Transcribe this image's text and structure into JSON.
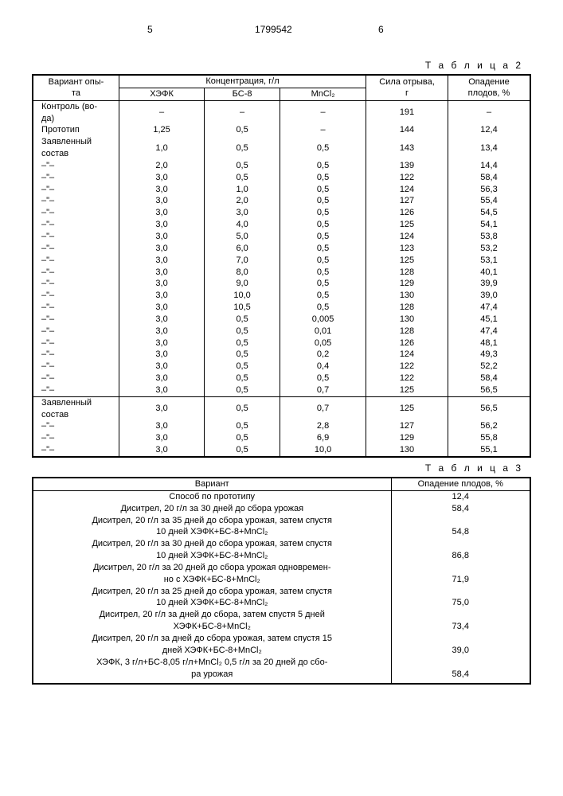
{
  "page_header": {
    "left_col": "5",
    "doc_number": "1799542",
    "right_col": "6"
  },
  "table2": {
    "label": "Т а б л и ц а 2",
    "headers": {
      "variant": "Вариант опы-\nта",
      "concentration_group": "Концентрация, г/л",
      "sub": {
        "c1": "ХЭФК",
        "c2": "БС-8",
        "c3": "MnCl₂"
      },
      "force": "Сила отрыва,\nг",
      "fall": "Опадение\nплодов, %"
    },
    "rows": [
      {
        "v": "Контроль (во-\nда)",
        "c1": "–",
        "c2": "–",
        "c3": "–",
        "f": "191",
        "p": "–"
      },
      {
        "v": "Прототип",
        "c1": "1,25",
        "c2": "0,5",
        "c3": "–",
        "f": "144",
        "p": "12,4"
      },
      {
        "v": "Заявленный\nсостав",
        "c1": "1,0",
        "c2": "0,5",
        "c3": "0,5",
        "f": "143",
        "p": "13,4"
      },
      {
        "v": "–\"–",
        "c1": "2,0",
        "c2": "0,5",
        "c3": "0,5",
        "f": "139",
        "p": "14,4"
      },
      {
        "v": "–\"–",
        "c1": "3,0",
        "c2": "0,5",
        "c3": "0,5",
        "f": "122",
        "p": "58,4"
      },
      {
        "v": "–\"–",
        "c1": "3,0",
        "c2": "1,0",
        "c3": "0,5",
        "f": "124",
        "p": "56,3"
      },
      {
        "v": "–\"–",
        "c1": "3,0",
        "c2": "2,0",
        "c3": "0,5",
        "f": "127",
        "p": "55,4"
      },
      {
        "v": "–\"–",
        "c1": "3,0",
        "c2": "3,0",
        "c3": "0,5",
        "f": "126",
        "p": "54,5"
      },
      {
        "v": "–\"–",
        "c1": "3,0",
        "c2": "4,0",
        "c3": "0,5",
        "f": "125",
        "p": "54,1"
      },
      {
        "v": "–\"–",
        "c1": "3,0",
        "c2": "5,0",
        "c3": "0,5",
        "f": "124",
        "p": "53,8"
      },
      {
        "v": "–\"–",
        "c1": "3,0",
        "c2": "6,0",
        "c3": "0,5",
        "f": "123",
        "p": "53,2"
      },
      {
        "v": "–\"–",
        "c1": "3,0",
        "c2": "7,0",
        "c3": "0,5",
        "f": "125",
        "p": "53,1"
      },
      {
        "v": "–\"–",
        "c1": "3,0",
        "c2": "8,0",
        "c3": "0,5",
        "f": "128",
        "p": "40,1"
      },
      {
        "v": "–\"–",
        "c1": "3,0",
        "c2": "9,0",
        "c3": "0,5",
        "f": "129",
        "p": "39,9"
      },
      {
        "v": "–\"–",
        "c1": "3,0",
        "c2": "10,0",
        "c3": "0,5",
        "f": "130",
        "p": "39,0"
      },
      {
        "v": "–\"–",
        "c1": "3,0",
        "c2": "10,5",
        "c3": "0,5",
        "f": "128",
        "p": "47,4"
      },
      {
        "v": "–\"–",
        "c1": "3,0",
        "c2": "0,5",
        "c3": "0,005",
        "f": "130",
        "p": "45,1"
      },
      {
        "v": "–\"–",
        "c1": "3,0",
        "c2": "0,5",
        "c3": "0,01",
        "f": "128",
        "p": "47,4"
      },
      {
        "v": "–\"–",
        "c1": "3,0",
        "c2": "0,5",
        "c3": "0,05",
        "f": "126",
        "p": "48,1"
      },
      {
        "v": "–\"–",
        "c1": "3,0",
        "c2": "0,5",
        "c3": "0,2",
        "f": "124",
        "p": "49,3"
      },
      {
        "v": "–\"–",
        "c1": "3,0",
        "c2": "0,5",
        "c3": "0,4",
        "f": "122",
        "p": "52,2"
      },
      {
        "v": "–\"–",
        "c1": "3,0",
        "c2": "0,5",
        "c3": "0,5",
        "f": "122",
        "p": "58,4"
      },
      {
        "v": "–\"–",
        "c1": "3,0",
        "c2": "0,5",
        "c3": "0,7",
        "f": "125",
        "p": "56,5",
        "sep": true
      },
      {
        "v": "Заявленный\nсостав",
        "c1": "3,0",
        "c2": "0,5",
        "c3": "0,7",
        "f": "125",
        "p": "56,5"
      },
      {
        "v": "–\"–",
        "c1": "3,0",
        "c2": "0,5",
        "c3": "2,8",
        "f": "127",
        "p": "56,2"
      },
      {
        "v": "–\"–",
        "c1": "3,0",
        "c2": "0,5",
        "c3": "6,9",
        "f": "129",
        "p": "55,8"
      },
      {
        "v": "–\"–",
        "c1": "3,0",
        "c2": "0,5",
        "c3": "10,0",
        "f": "130",
        "p": "55,1"
      }
    ]
  },
  "table3": {
    "label": "Т а б л и ц а 3",
    "headers": {
      "variant": "Вариант",
      "fall": "Опадение плодов, %"
    },
    "groups": [
      {
        "lines": [
          "Способ по прототипу"
        ],
        "val": "12,4"
      },
      {
        "lines": [
          "Диситрел, 20 г/л за 30 дней до сбора урожая"
        ],
        "val": "58,4"
      },
      {
        "lines": [
          "Диситрел, 20 г/л за 35 дней до сбора урожая, затем спустя",
          "10 дней ХЭФК+БС-8+MnCl₂"
        ],
        "val": "54,8"
      },
      {
        "lines": [
          "Диситрел, 20 г/л за 30 дней до сбора урожая, затем спустя",
          "10 дней ХЭФК+БС-8+MnCl₂"
        ],
        "val": "86,8"
      },
      {
        "lines": [
          "Диситрел, 20 г/л за 20 дней до сбора урожая одновремен-",
          "но с ХЭФК+БС-8+MnCl₂"
        ],
        "val": "71,9"
      },
      {
        "lines": [
          "Диситрел, 20 г/л за 25 дней до сбора урожая, затем спустя",
          "10 дней ХЭФК+БС-8+MnCl₂"
        ],
        "val": "75,0"
      },
      {
        "lines": [
          "Диситрел, 20 г/л за дней до сбора, затем спустя 5 дней",
          "ХЭФК+БС-8+MnCl₂"
        ],
        "val": "73,4"
      },
      {
        "lines": [
          "Диситрел, 20 г/л за дней до сбора урожая, затем спустя 15",
          "дней ХЭФК+БС-8+MnCl₂"
        ],
        "val": "39,0"
      },
      {
        "lines": [
          "ХЭФК, 3 г/л+БС-8,05 г/л+MnCl₂ 0,5 г/л за 20 дней до сбо-",
          "ра урожая"
        ],
        "val": "58,4"
      }
    ]
  }
}
